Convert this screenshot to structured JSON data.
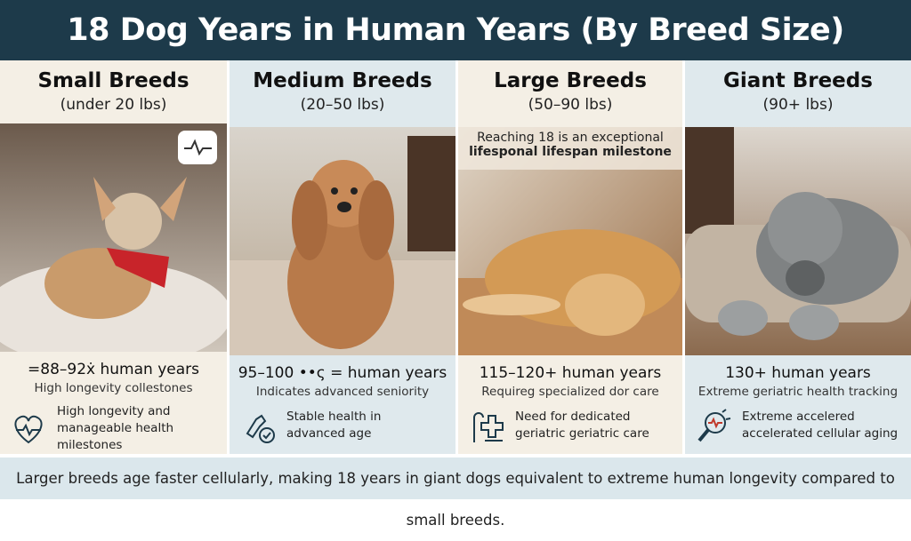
{
  "header": {
    "title": "18 Dog Years in Human Years (By Breed Size)"
  },
  "columns": [
    {
      "name": "Small Breeds",
      "range": "(under 20 lbs)",
      "years": "=88–92ẋ human years",
      "note": "High longevity collestones",
      "description": [
        "High longevity and",
        "manageable health milestones"
      ]
    },
    {
      "name": "Medium Breeds",
      "range": "(20–50 lbs)",
      "years": "95–100 ••ς = human years",
      "note": "Indicates advanced seniority",
      "description": [
        "Stable health in",
        "advanced age"
      ]
    },
    {
      "name": "Large Breeds",
      "range": "(50–90 lbs)",
      "caption": [
        "Reaching 18 is an exceptional",
        "lifesponal lifespan milestone"
      ],
      "years": "115–120+ human years",
      "note": "Requireg specialized dor care",
      "description": [
        "Need for dedicated",
        "geriatric geriatric care"
      ]
    },
    {
      "name": "Giant Breeds",
      "range": "(90+ lbs)",
      "years": "130+ human years",
      "note": "Extreme geriatric health tracking",
      "description": [
        "Extreme accelered",
        "accelerated cellular aging"
      ]
    }
  ],
  "footer": {
    "text": "Larger breeds age faster cellularly, making 18 years in giant dogs equivalent to extreme human longevity compared to small breeds."
  }
}
